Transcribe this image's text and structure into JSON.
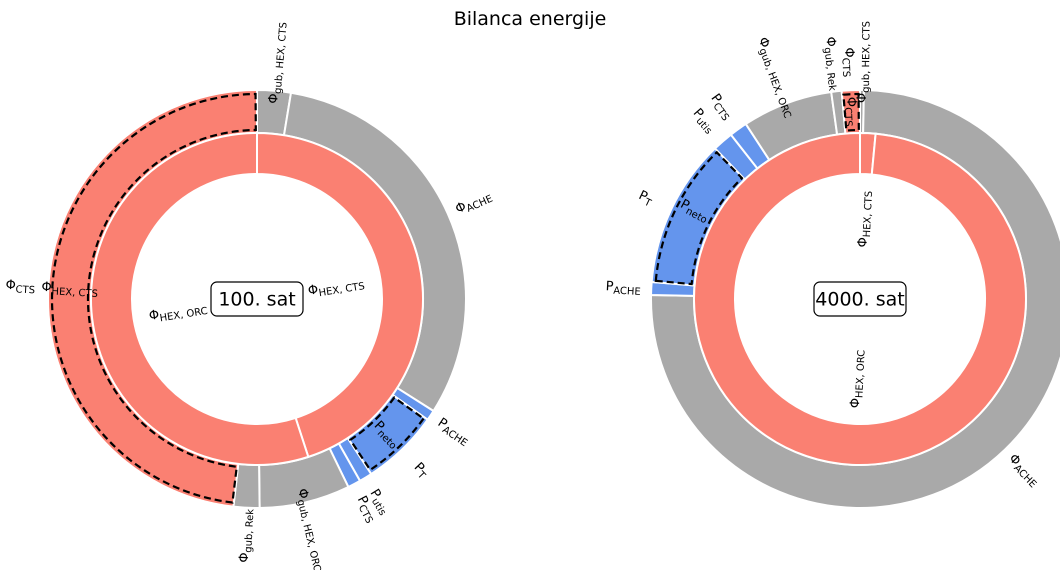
{
  "colors": {
    "heat": "#fa8072",
    "loss": "#a9a9a9",
    "power": "#6495ed",
    "edge": "#ffffff"
  },
  "chart_data": {
    "type": "pie",
    "title": "Bilanca energije",
    "charts": [
      {
        "label": "100. sat",
        "inner_ring": [
          {
            "name": "Φ_HEX,CTS",
            "value": 45,
            "color": "heat"
          },
          {
            "name": "Φ_HEX,ORC",
            "value": 55,
            "color": "heat"
          }
        ],
        "outer_ring": [
          {
            "name": "Φ_gub,HEX,CTS",
            "value": 2.6,
            "color": "loss"
          },
          {
            "name": "Φ_ACHE",
            "value": 31.4,
            "color": "loss"
          },
          {
            "name": "P_ACHE",
            "value": 0.8,
            "color": "power"
          },
          {
            "name": "P_T",
            "value": 6.0,
            "color": "power",
            "dashed": true
          },
          {
            "name": "P_utis",
            "value": 1.0,
            "color": "power"
          },
          {
            "name": "P_CTS",
            "value": 1.0,
            "color": "power"
          },
          {
            "name": "Φ_gub,HEX,ORC",
            "value": 7.0,
            "color": "loss"
          },
          {
            "name": "Φ_gub,Rek",
            "value": 2.0,
            "color": "loss"
          },
          {
            "name": "Φ_CTS",
            "value": 48.2,
            "color": "heat",
            "dashed": true
          }
        ],
        "dashed_groups": [
          {
            "name": "P_neto",
            "ring": "inner",
            "members": [
              "P_T"
            ]
          },
          {
            "name": "Φ_HEX,CTS",
            "ring": "inner",
            "members": [
              "Φ_CTS"
            ]
          }
        ]
      },
      {
        "label": "4000. sat",
        "inner_ring": [
          {
            "name": "Φ_HEX,CTS",
            "value": 1.5,
            "color": "heat"
          },
          {
            "name": "Φ_HEX,ORC",
            "value": 98.5,
            "color": "heat"
          }
        ],
        "outer_ring": [
          {
            "name": "Φ_gub,HEX,CTS",
            "value": 0.3,
            "color": "loss"
          },
          {
            "name": "Φ_ACHE",
            "value": 75.0,
            "color": "loss"
          },
          {
            "name": "P_ACHE",
            "value": 1.0,
            "color": "power"
          },
          {
            "name": "P_T",
            "value": 11.5,
            "color": "power",
            "dashed": true
          },
          {
            "name": "P_utis",
            "value": 1.6,
            "color": "power"
          },
          {
            "name": "P_CTS",
            "value": 1.4,
            "color": "power"
          },
          {
            "name": "Φ_gub,HEX,ORC",
            "value": 7.0,
            "color": "loss"
          },
          {
            "name": "Φ_gub,Rek",
            "value": 0.8,
            "color": "loss"
          },
          {
            "name": "Φ_CTS",
            "value": 1.4,
            "color": "heat",
            "dashed": true
          }
        ],
        "dashed_groups": [
          {
            "name": "P_neto",
            "ring": "inner",
            "members": [
              "P_T",
              "P_utis"
            ]
          },
          {
            "name": "Φ_CTS",
            "ring": "inner",
            "members": [
              "Φ_CTS"
            ]
          }
        ]
      }
    ],
    "legend": "none",
    "grid": false
  }
}
